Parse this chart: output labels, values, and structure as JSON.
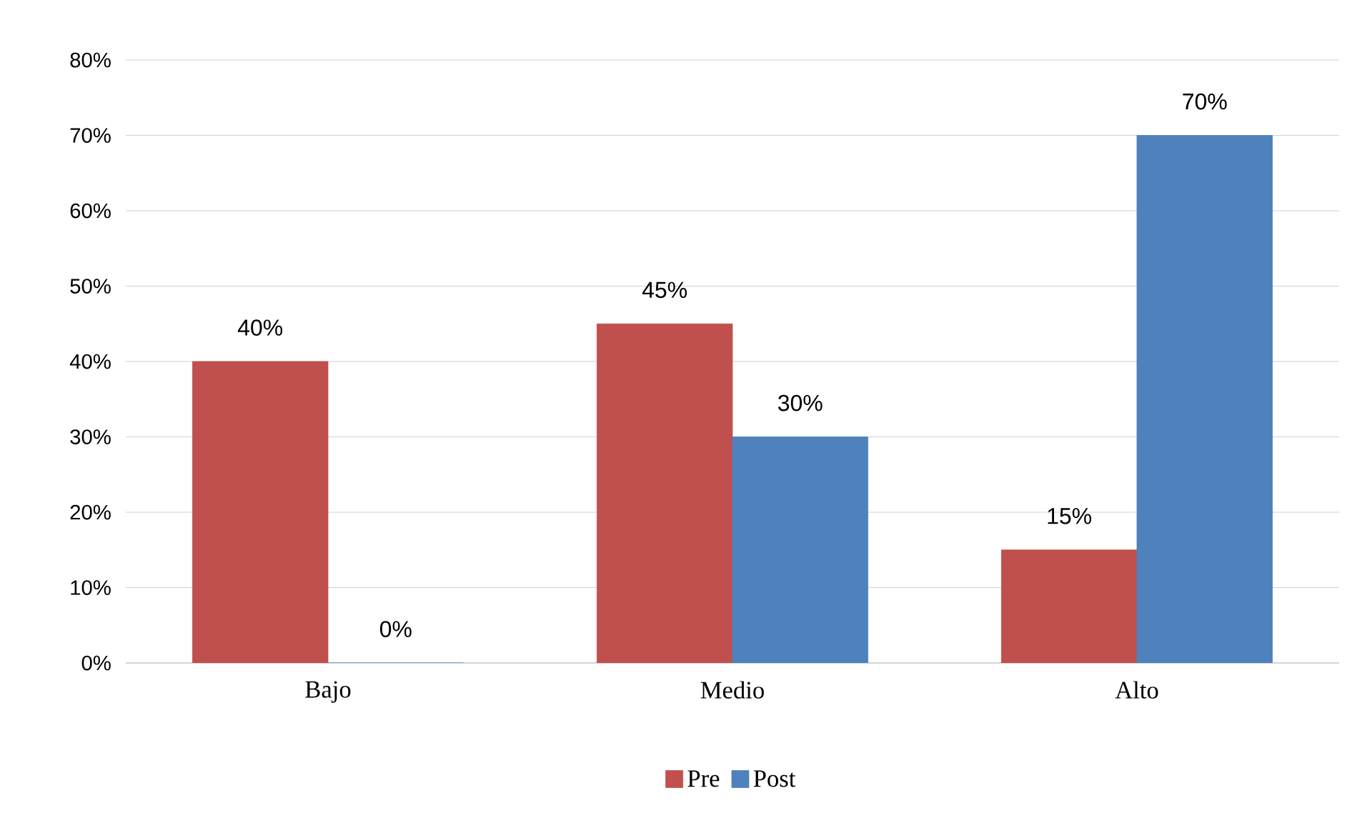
{
  "chart_data": {
    "type": "bar",
    "categories": [
      "Bajo",
      "Medio",
      "Alto"
    ],
    "series": [
      {
        "name": "Pre",
        "color": "#c0504d",
        "values": [
          40,
          45,
          15
        ],
        "value_labels": [
          "40%",
          "45%",
          "15%"
        ]
      },
      {
        "name": "Post",
        "color": "#4f81bd",
        "values": [
          0,
          30,
          70
        ],
        "value_labels": [
          "0%",
          "30%",
          "70%"
        ]
      }
    ],
    "ylim": [
      0,
      80
    ],
    "yticks": [
      {
        "value": 0,
        "label": "0%"
      },
      {
        "value": 10,
        "label": "10%"
      },
      {
        "value": 20,
        "label": "20%"
      },
      {
        "value": 30,
        "label": "30%"
      },
      {
        "value": 40,
        "label": "40%"
      },
      {
        "value": 50,
        "label": "50%"
      },
      {
        "value": 60,
        "label": "60%"
      },
      {
        "value": 70,
        "label": "70%"
      },
      {
        "value": 80,
        "label": "80%"
      }
    ],
    "grid": "y",
    "legend": "bottom"
  }
}
